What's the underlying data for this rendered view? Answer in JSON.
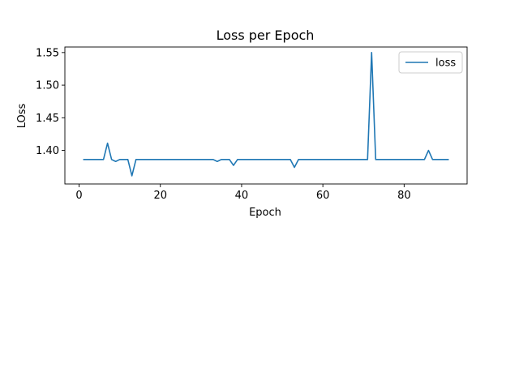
{
  "chart_data": {
    "type": "line",
    "title": "Loss per Epoch",
    "xlabel": "Epoch",
    "ylabel": "LOss",
    "xlim": [
      -3.5,
      95.5
    ],
    "ylim": [
      1.3485,
      1.5585
    ],
    "xticks": [
      0,
      20,
      40,
      60,
      80
    ],
    "yticks": [
      1.4,
      1.45,
      1.5,
      1.55
    ],
    "xtick_labels": [
      "0",
      "20",
      "40",
      "60",
      "80"
    ],
    "ytick_labels": [
      "1.40",
      "1.45",
      "1.50",
      "1.55"
    ],
    "grid": false,
    "legend_position": "top-right",
    "color": "#1f77b4",
    "series": [
      {
        "name": "loss",
        "x": [
          1,
          2,
          3,
          4,
          5,
          6,
          7,
          8,
          9,
          10,
          11,
          12,
          13,
          14,
          15,
          16,
          17,
          18,
          19,
          20,
          21,
          22,
          23,
          24,
          25,
          26,
          27,
          28,
          29,
          30,
          31,
          32,
          33,
          34,
          35,
          36,
          37,
          38,
          39,
          40,
          41,
          42,
          43,
          44,
          45,
          46,
          47,
          48,
          49,
          50,
          51,
          52,
          53,
          54,
          55,
          56,
          57,
          58,
          59,
          60,
          61,
          62,
          63,
          64,
          65,
          66,
          67,
          68,
          69,
          70,
          71,
          72,
          73,
          74,
          75,
          76,
          77,
          78,
          79,
          80,
          81,
          82,
          83,
          84,
          85,
          86,
          87,
          88,
          89,
          90,
          91
        ],
        "values": [
          1.386,
          1.386,
          1.386,
          1.386,
          1.386,
          1.386,
          1.411,
          1.386,
          1.383,
          1.386,
          1.386,
          1.386,
          1.361,
          1.386,
          1.386,
          1.386,
          1.386,
          1.386,
          1.386,
          1.386,
          1.386,
          1.386,
          1.386,
          1.386,
          1.386,
          1.386,
          1.386,
          1.386,
          1.386,
          1.386,
          1.386,
          1.386,
          1.386,
          1.383,
          1.386,
          1.386,
          1.386,
          1.377,
          1.386,
          1.386,
          1.386,
          1.386,
          1.386,
          1.386,
          1.386,
          1.386,
          1.386,
          1.386,
          1.386,
          1.386,
          1.386,
          1.386,
          1.374,
          1.386,
          1.386,
          1.386,
          1.386,
          1.386,
          1.386,
          1.386,
          1.386,
          1.386,
          1.386,
          1.386,
          1.386,
          1.386,
          1.386,
          1.386,
          1.386,
          1.386,
          1.386,
          1.55,
          1.386,
          1.386,
          1.386,
          1.386,
          1.386,
          1.386,
          1.386,
          1.386,
          1.386,
          1.386,
          1.386,
          1.386,
          1.386,
          1.4,
          1.386,
          1.386,
          1.386,
          1.386,
          1.386
        ]
      }
    ]
  }
}
